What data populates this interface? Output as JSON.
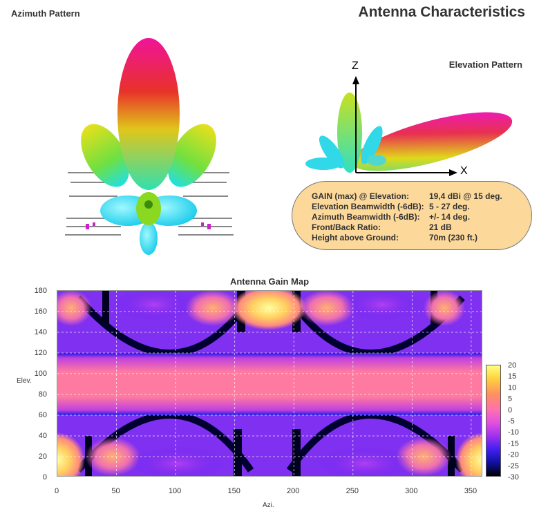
{
  "header": {
    "title": "Antenna Characteristics"
  },
  "azimuth_panel": {
    "title": "Azimuth Pattern"
  },
  "elevation_panel": {
    "title": "Elevation Pattern",
    "axis_z": "Z",
    "axis_x": "X"
  },
  "specs": {
    "rows": [
      {
        "label": "GAIN (max) @ Elevation:",
        "value": "19,4 dBi @ 15 deg."
      },
      {
        "label": "Elevation Beamwidth (-6dB):",
        "value": "5 - 27 deg."
      },
      {
        "label": "Azimuth Beamwidth (-6dB):",
        "value": "+/- 14 deg."
      },
      {
        "label": "Front/Back Ratio:",
        "value": "21 dB"
      },
      {
        "label": "Height above Ground:",
        "value": "70m (230 ft.)"
      }
    ]
  },
  "colors": {
    "spec_box_bg": "#fcd89a",
    "lobe_main": "#e8177f",
    "lobe_mid": "#e0e020",
    "lobe_low": "#22e0f0"
  },
  "chart_data": {
    "type": "heatmap",
    "title": "Antenna Gain Map",
    "xlabel": "Azi.",
    "ylabel": "Elev.",
    "xlim": [
      0,
      360
    ],
    "ylim": [
      0,
      180
    ],
    "x_ticks": [
      "0",
      "50",
      "100",
      "150",
      "200",
      "250",
      "300",
      "350"
    ],
    "y_ticks": [
      "0",
      "20",
      "40",
      "60",
      "80",
      "100",
      "120",
      "140",
      "160",
      "180"
    ],
    "grid": true,
    "colorbar": {
      "range": [
        -30,
        20
      ],
      "ticks": [
        "20",
        "15",
        "10",
        "5",
        "0",
        "-5",
        "-10",
        "-15",
        "-20",
        "-25",
        "-30"
      ]
    },
    "hot_spots": [
      {
        "azi": 180,
        "elev": 165,
        "gain": 18
      },
      {
        "azi": 0,
        "elev": 15,
        "gain": 17
      },
      {
        "azi": 360,
        "elev": 15,
        "gain": 17
      },
      {
        "azi": 90,
        "elev": 90,
        "gain": 8
      },
      {
        "azi": 270,
        "elev": 90,
        "gain": 8
      }
    ]
  }
}
